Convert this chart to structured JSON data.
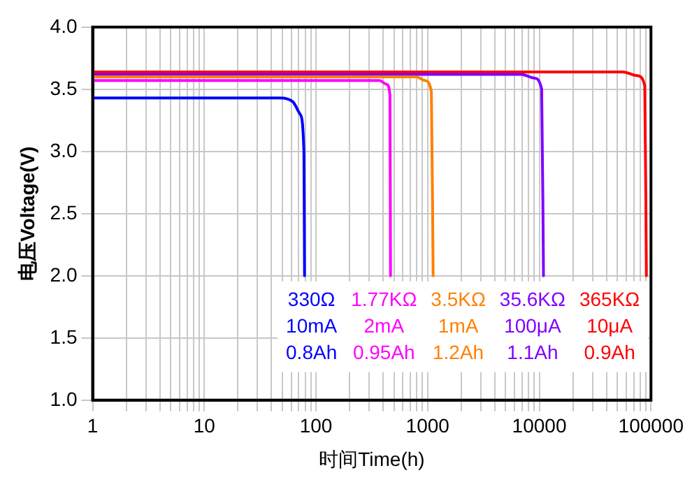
{
  "chart_data": {
    "type": "line",
    "xlabel": "时间Time(h)",
    "ylabel": "电压Voltage(V)",
    "log": "x",
    "grid": true,
    "legend": "bottom right",
    "marker": "none",
    "line_style": "solid",
    "xlim": [
      1,
      100000
    ],
    "ylim": [
      1,
      4
    ],
    "xticks": [
      1,
      {
        "value": 2,
        "label": null
      },
      {
        "value": 3,
        "label": null
      },
      {
        "value": 4,
        "label": null
      },
      {
        "value": 5,
        "label": null
      },
      {
        "value": 6,
        "label": null
      },
      {
        "value": 7,
        "label": null
      },
      {
        "value": 8,
        "label": null
      },
      {
        "value": 9,
        "label": null
      },
      10,
      {
        "value": 20,
        "label": null
      },
      {
        "value": 30,
        "label": null
      },
      {
        "value": 40,
        "label": null
      },
      {
        "value": 50,
        "label": null
      },
      {
        "value": 60,
        "label": null
      },
      {
        "value": 70,
        "label": null
      },
      {
        "value": 80,
        "label": null
      },
      {
        "value": 90,
        "label": null
      },
      100,
      {
        "value": 200,
        "label": null
      },
      {
        "value": 300,
        "label": null
      },
      {
        "value": 400,
        "label": null
      },
      {
        "value": 500,
        "label": null
      },
      {
        "value": 600,
        "label": null
      },
      {
        "value": 700,
        "label": null
      },
      {
        "value": 800,
        "label": null
      },
      {
        "value": 900,
        "label": null
      },
      1000,
      {
        "value": 2000,
        "label": null
      },
      {
        "value": 3000,
        "label": null
      },
      {
        "value": 4000,
        "label": null
      },
      {
        "value": 5000,
        "label": null
      },
      {
        "value": 6000,
        "label": null
      },
      {
        "value": 7000,
        "label": null
      },
      {
        "value": 8000,
        "label": null
      },
      {
        "value": 9000,
        "label": null
      },
      10000,
      {
        "value": 20000,
        "label": null
      },
      {
        "value": 30000,
        "label": null
      },
      {
        "value": 40000,
        "label": null
      },
      {
        "value": 50000,
        "label": null
      },
      {
        "value": 60000,
        "label": null
      },
      {
        "value": 70000,
        "label": null
      },
      {
        "value": 80000,
        "label": null
      },
      {
        "value": 90000,
        "label": null
      },
      100000
    ],
    "yticks": [
      {
        "value": 1,
        "label": "1.0"
      },
      1.5,
      {
        "value": 2,
        "label": "2.0"
      },
      2.5,
      {
        "value": 3,
        "label": "3.0"
      },
      3.5,
      {
        "value": 4,
        "label": "4.0"
      }
    ],
    "series": [
      {
        "name": "330Ω\n10mA\n0.8Ah",
        "color": "#0000ff",
        "x": [
          1,
          48,
          62,
          72,
          78,
          79
        ],
        "values": [
          3.43,
          3.43,
          3.4,
          3.3,
          3.0,
          2.0
        ]
      },
      {
        "name": "1.77KΩ\n2mA\n0.95Ah",
        "color": "#ff00ff",
        "x": [
          1,
          370,
          430,
          460,
          465
        ],
        "values": [
          3.57,
          3.57,
          3.54,
          3.45,
          2.0
        ]
      },
      {
        "name": "3.5KΩ\n1mA\n1.2Ah",
        "color": "#ff8000",
        "x": [
          1,
          790,
          950,
          1080,
          1120
        ],
        "values": [
          3.6,
          3.6,
          3.57,
          3.48,
          2.0
        ]
      },
      {
        "name": "35.6KΩ\n100μA\n1.1Ah",
        "color": "#8000ff",
        "x": [
          1,
          6900,
          9000,
          10500,
          10900
        ],
        "values": [
          3.62,
          3.62,
          3.59,
          3.5,
          2.0
        ]
      },
      {
        "name": "365KΩ\n10μA\n0.9Ah",
        "color": "#ff0000",
        "x": [
          1,
          56000,
          75000,
          88000,
          91000
        ],
        "values": [
          3.64,
          3.64,
          3.61,
          3.53,
          2.0
        ]
      }
    ]
  }
}
